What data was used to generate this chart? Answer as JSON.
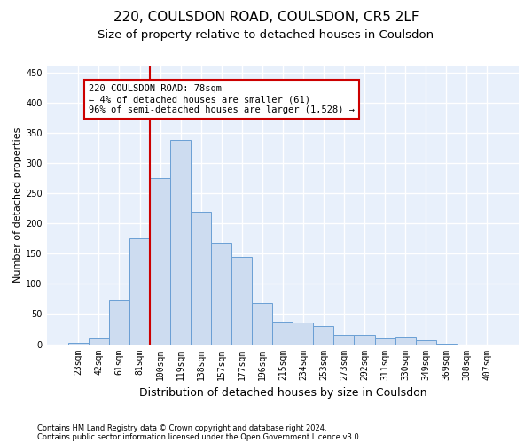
{
  "title": "220, COULSDON ROAD, COULSDON, CR5 2LF",
  "subtitle": "Size of property relative to detached houses in Coulsdon",
  "xlabel": "Distribution of detached houses by size in Coulsdon",
  "ylabel": "Number of detached properties",
  "categories": [
    "23sqm",
    "42sqm",
    "61sqm",
    "81sqm",
    "100sqm",
    "119sqm",
    "138sqm",
    "157sqm",
    "177sqm",
    "196sqm",
    "215sqm",
    "234sqm",
    "253sqm",
    "273sqm",
    "292sqm",
    "311sqm",
    "330sqm",
    "349sqm",
    "369sqm",
    "388sqm",
    "407sqm"
  ],
  "values": [
    2,
    10,
    72,
    175,
    275,
    338,
    220,
    168,
    145,
    68,
    37,
    36,
    30,
    16,
    16,
    10,
    12,
    7,
    1,
    0,
    0
  ],
  "bar_color": "#cddcf0",
  "bar_edge_color": "#6a9fd4",
  "background_color": "#e8f0fb",
  "grid_color": "#ffffff",
  "vline_x_index": 3,
  "vline_color": "#cc0000",
  "annotation_text": "220 COULSDON ROAD: 78sqm\n← 4% of detached houses are smaller (61)\n96% of semi-detached houses are larger (1,528) →",
  "annotation_box_color": "#cc0000",
  "footnote1": "Contains HM Land Registry data © Crown copyright and database right 2024.",
  "footnote2": "Contains public sector information licensed under the Open Government Licence v3.0.",
  "ylim": [
    0,
    460
  ],
  "yticks": [
    0,
    50,
    100,
    150,
    200,
    250,
    300,
    350,
    400,
    450
  ],
  "title_fontsize": 11,
  "subtitle_fontsize": 9.5,
  "tick_fontsize": 7,
  "ylabel_fontsize": 8,
  "xlabel_fontsize": 9
}
